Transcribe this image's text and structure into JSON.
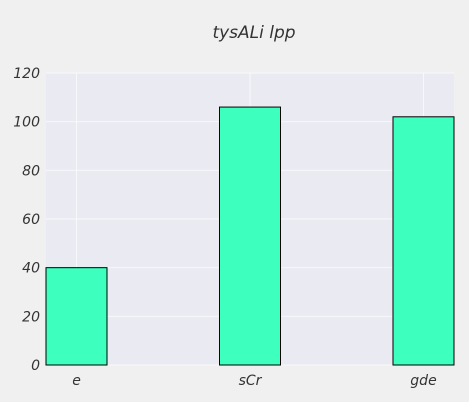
{
  "chart_data": {
    "type": "bar",
    "title": "tysALi lpp",
    "categories": [
      "e",
      "sCr",
      "gde"
    ],
    "values": [
      40,
      106,
      102
    ],
    "xlabel": "",
    "ylabel": "",
    "ylim": [
      0,
      120
    ],
    "yticks": [
      0,
      20,
      40,
      60,
      80,
      100,
      120
    ],
    "grid": true,
    "legend": "none",
    "colors": {
      "bar": "#3dffbe",
      "bar_edge": "#000000",
      "plot_background": "#eaeaf2",
      "figure_background": "#f0f0f0",
      "grid": "#f8f8fb",
      "text": "#333333"
    }
  }
}
